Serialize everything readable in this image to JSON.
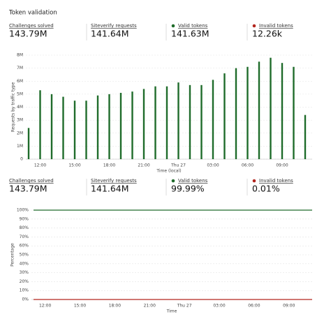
{
  "title": "Token validation",
  "stats": [
    [
      {
        "label": "Challenges solved",
        "value": "143.79M"
      },
      {
        "label": "Siteverify requests",
        "value": "141.64M"
      },
      {
        "label": "Valid tokens",
        "value": "141.63M",
        "color": "#1e6b2a"
      },
      {
        "label": "Invalid tokens",
        "value": "12.26k",
        "color": "#b3261e"
      }
    ],
    [
      {
        "label": "Challenges solved",
        "value": "143.79M"
      },
      {
        "label": "Siteverify requests",
        "value": "141.64M"
      },
      {
        "label": "Valid tokens",
        "value": "99.99%",
        "color": "#1e6b2a"
      },
      {
        "label": "Invalid tokens",
        "value": "0.01%",
        "color": "#b3261e"
      }
    ]
  ],
  "chart_data": [
    {
      "type": "bar",
      "categories": [
        null,
        "12:00",
        null,
        null,
        "15:00",
        null,
        null,
        "18:00",
        null,
        null,
        "21:00",
        null,
        null,
        "Thu 27",
        null,
        null,
        "03:00",
        null,
        null,
        "06:00",
        null,
        null,
        "09:00",
        null,
        null
      ],
      "values": [
        2400000,
        5300000,
        5000000,
        4800000,
        4500000,
        4500000,
        4900000,
        5000000,
        5100000,
        5200000,
        5400000,
        5600000,
        5600000,
        5900000,
        5700000,
        5700000,
        6100000,
        6600000,
        7000000,
        7100000,
        7500000,
        7800000,
        7400000,
        7100000,
        3400000
      ],
      "color": "#1e6b2a",
      "ylim": [
        0,
        8000000
      ],
      "yticks": [
        0,
        {
          "value": 1000000,
          "label": "1M"
        },
        {
          "value": 2000000,
          "label": "2M"
        },
        {
          "value": 3000000,
          "label": "3M"
        },
        {
          "value": 4000000,
          "label": "4M"
        },
        {
          "value": 5000000,
          "label": "5M"
        },
        {
          "value": 6000000,
          "label": "6M"
        },
        {
          "value": 7000000,
          "label": "7M"
        },
        {
          "value": 8000000,
          "label": "8M"
        }
      ],
      "ylabel": "Requests by traffic type",
      "xlabel": "Time (local)",
      "grid": true
    },
    {
      "type": "line",
      "categories": [
        null,
        "12:00",
        null,
        null,
        "15:00",
        null,
        null,
        "18:00",
        null,
        null,
        "21:00",
        null,
        null,
        "Thu 27",
        null,
        null,
        "03:00",
        null,
        null,
        "06:00",
        null,
        null,
        "09:00",
        null,
        null
      ],
      "series": [
        {
          "color": "#1e6b2a",
          "values": [
            99.99,
            99.99,
            99.99,
            99.99,
            99.99,
            99.99,
            99.99,
            99.99,
            99.99,
            99.99,
            99.99,
            99.99,
            99.99,
            99.99,
            99.99,
            99.99,
            99.99,
            99.99,
            99.99,
            99.99,
            99.99,
            99.99,
            99.99,
            99.99,
            99.99
          ]
        },
        {
          "color": "#b3261e",
          "values": [
            0.01,
            0.01,
            0.01,
            0.01,
            0.01,
            0.01,
            0.01,
            0.01,
            0.01,
            0.01,
            0.01,
            0.01,
            0.01,
            0.01,
            0.01,
            0.01,
            0.01,
            0.01,
            0.01,
            0.01,
            0.01,
            0.01,
            0.01,
            0.01,
            0.01
          ]
        }
      ],
      "ylim": [
        0,
        100
      ],
      "yticks": [
        {
          "value": 0,
          "label": "0%"
        },
        {
          "value": 10,
          "label": "10%"
        },
        {
          "value": 20,
          "label": "20%"
        },
        {
          "value": 30,
          "label": "30%"
        },
        {
          "value": 40,
          "label": "40%"
        },
        {
          "value": 50,
          "label": "50%"
        },
        {
          "value": 60,
          "label": "60%"
        },
        {
          "value": 70,
          "label": "70%"
        },
        {
          "value": 80,
          "label": "80%"
        },
        {
          "value": 90,
          "label": "90%"
        },
        {
          "value": 100,
          "label": "100%"
        }
      ],
      "ylabel": "Percentage",
      "xlabel": "Time",
      "grid": true
    }
  ]
}
